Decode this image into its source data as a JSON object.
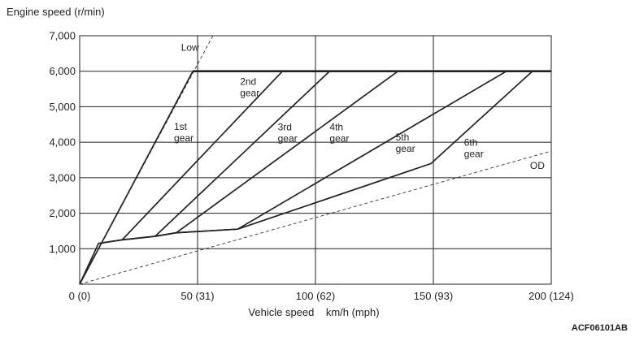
{
  "chart_data": {
    "type": "line",
    "ylabel": "Engine speed (r/min)",
    "xlabel": "Vehicle speed    km/h (mph)",
    "xlim": [
      0,
      200
    ],
    "ylim": [
      0,
      7000
    ],
    "grid": true,
    "x_ticks": [
      {
        "value": 0,
        "label": "0 (0)"
      },
      {
        "value": 50,
        "label": "50 (31)"
      },
      {
        "value": 100,
        "label": "100 (62)"
      },
      {
        "value": 150,
        "label": "150 (93)"
      },
      {
        "value": 200,
        "label": "200 (124)"
      }
    ],
    "y_ticks": [
      {
        "value": 1000,
        "label": "1,000"
      },
      {
        "value": 2000,
        "label": "2,000"
      },
      {
        "value": 3000,
        "label": "3,000"
      },
      {
        "value": 4000,
        "label": "4,000"
      },
      {
        "value": 5000,
        "label": "5,000"
      },
      {
        "value": 6000,
        "label": "6,000"
      },
      {
        "value": 7000,
        "label": "7,000"
      }
    ],
    "reference_lines": [
      {
        "name": "Low",
        "label_lines": [
          "Low"
        ],
        "style": "dashed",
        "points": [
          [
            0,
            0
          ],
          [
            56.5,
            7000
          ]
        ],
        "label_at": [
          43,
          6580
        ]
      },
      {
        "name": "OD",
        "label_lines": [
          "OD"
        ],
        "style": "dashed",
        "points": [
          [
            0,
            0
          ],
          [
            200,
            3750
          ]
        ],
        "label_at": [
          191,
          3250
        ]
      }
    ],
    "rev_limit": {
      "value": 6000,
      "x_range": [
        48,
        200
      ]
    },
    "series": [
      {
        "name": "1st gear",
        "label_lines": [
          "1st",
          "gear"
        ],
        "points": [
          [
            0,
            0
          ],
          [
            48,
            6000
          ]
        ],
        "label_at": [
          40,
          4350
        ]
      },
      {
        "name": "2nd gear",
        "label_lines": [
          "2nd",
          "gear"
        ],
        "points": [
          [
            8,
            1150
          ],
          [
            18,
            1250
          ],
          [
            86,
            6000
          ]
        ],
        "label_at": [
          68,
          5620
        ]
      },
      {
        "name": "3rd gear",
        "label_lines": [
          "3rd",
          "gear"
        ],
        "points": [
          [
            18,
            1250
          ],
          [
            32,
            1350
          ],
          [
            106,
            6000
          ]
        ],
        "label_at": [
          84,
          4340
        ]
      },
      {
        "name": "4th gear",
        "label_lines": [
          "4th",
          "gear"
        ],
        "points": [
          [
            32,
            1350
          ],
          [
            41,
            1450
          ],
          [
            135,
            6000
          ]
        ],
        "label_at": [
          106,
          4340
        ]
      },
      {
        "name": "5th gear",
        "label_lines": [
          "5th",
          "gear"
        ],
        "points": [
          [
            41,
            1450
          ],
          [
            67,
            1550
          ],
          [
            181,
            6000
          ]
        ],
        "label_at": [
          134,
          4050
        ]
      },
      {
        "name": "6th gear",
        "label_lines": [
          "6th",
          "gear"
        ],
        "points": [
          [
            67,
            1550
          ],
          [
            149,
            3400
          ],
          [
            192,
            6000
          ]
        ],
        "label_at": [
          163,
          3900
        ]
      },
      {
        "name": "base",
        "label_lines": [],
        "points": [
          [
            0,
            0
          ],
          [
            8,
            1150
          ],
          [
            18,
            1250
          ],
          [
            32,
            1350
          ],
          [
            41,
            1450
          ],
          [
            67,
            1550
          ]
        ]
      }
    ]
  },
  "figure_code": "ACF06101AB"
}
